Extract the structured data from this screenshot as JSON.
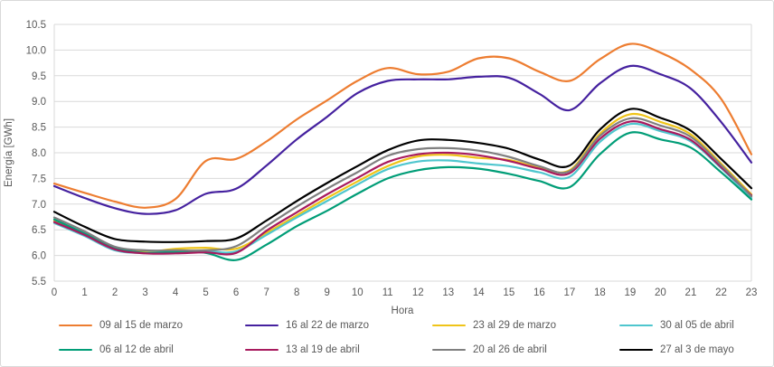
{
  "chart_data": {
    "type": "line",
    "title": "",
    "xlabel": "Hora",
    "ylabel": "Energía [GWh]",
    "x": [
      0,
      1,
      2,
      3,
      4,
      5,
      6,
      7,
      8,
      9,
      10,
      11,
      12,
      13,
      14,
      15,
      16,
      17,
      18,
      19,
      20,
      21,
      22,
      23
    ],
    "x_ticks": [
      "0",
      "1",
      "2",
      "3",
      "4",
      "5",
      "6",
      "7",
      "8",
      "9",
      "10",
      "11",
      "12",
      "13",
      "14",
      "15",
      "16",
      "17",
      "18",
      "19",
      "20",
      "21",
      "22",
      "23"
    ],
    "ylim": [
      5.5,
      10.5
    ],
    "y_ticks": [
      "5.5",
      "6.0",
      "6.5",
      "7.0",
      "7.5",
      "8.0",
      "8.5",
      "9.0",
      "9.5",
      "10.0",
      "10.5"
    ],
    "grid": true,
    "legend_position": "bottom",
    "colors": {
      "grid": "#d9d9d9",
      "tick_text": "#595959"
    },
    "series": [
      {
        "name": "09 al 15 de marzo",
        "color": "#ED7D31",
        "values": [
          7.4,
          7.22,
          7.05,
          6.93,
          7.1,
          7.84,
          7.88,
          8.22,
          8.65,
          9.02,
          9.4,
          9.65,
          9.53,
          9.58,
          9.84,
          9.84,
          9.58,
          9.4,
          9.82,
          10.12,
          9.95,
          9.62,
          9.05,
          7.97
        ]
      },
      {
        "name": "16 al 22 de marzo",
        "color": "#45219F",
        "values": [
          7.35,
          7.12,
          6.92,
          6.81,
          6.88,
          7.2,
          7.3,
          7.75,
          8.26,
          8.7,
          9.16,
          9.4,
          9.43,
          9.43,
          9.48,
          9.46,
          9.15,
          8.83,
          9.35,
          9.69,
          9.53,
          9.25,
          8.6,
          7.81
        ]
      },
      {
        "name": "23 al 29 de marzo",
        "color": "#EFC419",
        "values": [
          6.68,
          6.41,
          6.14,
          6.07,
          6.13,
          6.15,
          6.13,
          6.44,
          6.78,
          7.12,
          7.44,
          7.74,
          7.93,
          7.96,
          7.9,
          7.86,
          7.71,
          7.66,
          8.37,
          8.75,
          8.6,
          8.36,
          7.79,
          7.19
        ]
      },
      {
        "name": "30 al 05 de abril",
        "color": "#4FC6CE",
        "values": [
          6.63,
          6.38,
          6.1,
          6.05,
          6.08,
          6.08,
          6.08,
          6.4,
          6.74,
          7.06,
          7.38,
          7.68,
          7.83,
          7.85,
          7.79,
          7.74,
          7.62,
          7.53,
          8.21,
          8.56,
          8.42,
          8.22,
          7.7,
          7.12
        ]
      },
      {
        "name": "06 al 12 de abril",
        "color": "#009D77",
        "values": [
          6.7,
          6.43,
          6.15,
          6.05,
          6.07,
          6.05,
          5.91,
          6.21,
          6.57,
          6.87,
          7.2,
          7.5,
          7.66,
          7.72,
          7.69,
          7.59,
          7.45,
          7.33,
          7.97,
          8.39,
          8.26,
          8.1,
          7.62,
          7.09
        ]
      },
      {
        "name": "13 al 19 de abril",
        "color": "#A81A5E",
        "values": [
          6.65,
          6.4,
          6.12,
          6.04,
          6.04,
          6.06,
          6.05,
          6.48,
          6.84,
          7.19,
          7.51,
          7.82,
          7.97,
          8.0,
          7.95,
          7.84,
          7.69,
          7.6,
          8.27,
          8.61,
          8.46,
          8.25,
          7.72,
          7.17
        ]
      },
      {
        "name": "20 al 26 de abril",
        "color": "#7F7F7F",
        "values": [
          6.74,
          6.47,
          6.17,
          6.1,
          6.1,
          6.1,
          6.18,
          6.57,
          6.95,
          7.3,
          7.62,
          7.94,
          8.07,
          8.09,
          8.04,
          7.92,
          7.74,
          7.64,
          8.33,
          8.67,
          8.53,
          8.31,
          7.76,
          7.15
        ]
      },
      {
        "name": "27 al 3 de mayo",
        "color": "#000000",
        "values": [
          6.85,
          6.56,
          6.32,
          6.27,
          6.26,
          6.28,
          6.33,
          6.68,
          7.06,
          7.41,
          7.74,
          8.05,
          8.24,
          8.25,
          8.19,
          8.08,
          7.87,
          7.75,
          8.45,
          8.85,
          8.68,
          8.43,
          7.88,
          7.31
        ]
      }
    ]
  }
}
